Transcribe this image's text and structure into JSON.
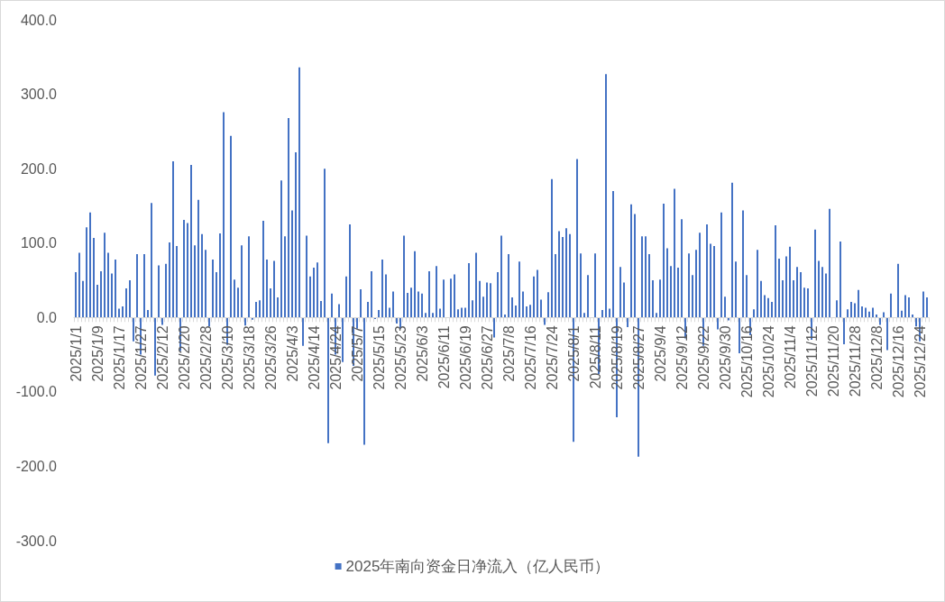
{
  "chart_data": {
    "type": "bar",
    "categories": [
      "2025/1/1",
      null,
      null,
      null,
      null,
      null,
      "2025/1/9",
      null,
      null,
      null,
      null,
      null,
      "2025/1/17",
      null,
      null,
      null,
      null,
      null,
      "2025/1/27",
      null,
      null,
      null,
      null,
      null,
      "2025/2/12",
      null,
      null,
      null,
      null,
      null,
      "2025/2/20",
      null,
      null,
      null,
      null,
      null,
      "2025/2/28",
      null,
      null,
      null,
      null,
      null,
      "2025/3/10",
      null,
      null,
      null,
      null,
      null,
      "2025/3/18",
      null,
      null,
      null,
      null,
      null,
      "2025/3/26",
      null,
      null,
      null,
      null,
      null,
      "2025/4/3",
      null,
      null,
      null,
      null,
      null,
      "2025/4/14",
      null,
      null,
      null,
      null,
      null,
      "2025/4/24",
      null,
      null,
      null,
      null,
      null,
      "2025/5/7",
      null,
      null,
      null,
      null,
      null,
      "2025/5/15",
      null,
      null,
      null,
      null,
      null,
      "2025/5/23",
      null,
      null,
      null,
      null,
      null,
      "2025/6/3",
      null,
      null,
      null,
      null,
      null,
      "2025/6/11",
      null,
      null,
      null,
      null,
      null,
      "2025/6/19",
      null,
      null,
      null,
      null,
      null,
      "2025/6/27",
      null,
      null,
      null,
      null,
      null,
      "2025/7/8",
      null,
      null,
      null,
      null,
      null,
      "2025/7/16",
      null,
      null,
      null,
      null,
      null,
      "2025/7/24",
      null,
      null,
      null,
      null,
      null,
      "2025/8/1",
      null,
      null,
      null,
      null,
      null,
      "2025/8/11",
      null,
      null,
      null,
      null,
      null,
      "2025/8/19",
      null,
      null,
      null,
      null,
      null,
      "2025/8/27",
      null,
      null,
      null,
      null,
      null,
      "2025/9/4",
      null,
      null,
      null,
      null,
      null,
      "2025/9/12",
      null,
      null,
      null,
      null,
      null,
      "2025/9/22",
      null,
      null,
      null,
      null,
      null,
      "2025/9/30",
      null,
      null,
      null,
      null,
      null,
      "2025/10/16",
      null,
      null,
      null,
      null,
      null,
      "2025/10/24",
      null,
      null,
      null,
      null,
      null,
      "2025/11/4",
      null,
      null,
      null,
      null,
      null,
      "2025/11/12",
      null,
      null,
      null,
      null,
      null,
      "2025/11/20",
      null,
      null,
      null,
      null,
      null,
      "2025/11/28",
      null,
      null,
      null,
      null,
      null,
      "2025/12/8",
      null,
      null,
      null,
      null,
      null,
      "2025/12/16",
      null,
      null,
      null,
      null,
      null,
      "2025/12/24",
      null,
      null
    ],
    "series": [
      {
        "name": "2025年南向资金日净流入（亿人民币）",
        "color": "#4472c4",
        "values": [
          61,
          87,
          49,
          121,
          141,
          107,
          44,
          62,
          114,
          87,
          59,
          78,
          12,
          15,
          39,
          50,
          -32,
          85,
          -50,
          85,
          10,
          154,
          -78,
          70,
          -10,
          72,
          101,
          210,
          96,
          -45,
          131,
          127,
          205,
          97,
          158,
          112,
          91,
          -12,
          78,
          61,
          113,
          276,
          -37,
          244,
          51,
          40,
          97,
          -11,
          109,
          -3,
          21,
          23,
          130,
          78,
          39,
          76,
          27,
          184,
          109,
          268,
          144,
          222,
          336,
          -38,
          110,
          55,
          67,
          74,
          22,
          200,
          -169,
          32,
          -50,
          18,
          -60,
          55,
          125,
          -65,
          -15,
          38,
          -171,
          21,
          62,
          -2,
          10,
          78,
          58,
          13,
          35,
          -8,
          -15,
          110,
          33,
          40,
          89,
          35,
          32,
          6,
          62,
          6,
          69,
          12,
          51,
          null,
          52,
          58,
          11,
          13,
          13,
          73,
          23,
          87,
          49,
          28,
          47,
          46,
          -27,
          61,
          110,
          4,
          85,
          27,
          16,
          75,
          35,
          15,
          17,
          55,
          64,
          24,
          -10,
          34,
          186,
          85,
          116,
          108,
          120,
          112,
          -167,
          213,
          86,
          6,
          57,
          null,
          86,
          -76,
          10,
          327,
          12,
          170,
          -134,
          68,
          47,
          -13,
          152,
          139,
          -187,
          109,
          109,
          85,
          50,
          6,
          51,
          153,
          93,
          69,
          173,
          67,
          132,
          -28,
          86,
          57,
          91,
          114,
          -38,
          125,
          99,
          96,
          -16,
          141,
          28,
          -4,
          181,
          75,
          -48,
          144,
          57,
          -24,
          11,
          91,
          49,
          30,
          26,
          21,
          124,
          79,
          50,
          82,
          95,
          50,
          68,
          61,
          40,
          39,
          -30,
          118,
          76,
          68,
          59,
          146,
          null,
          23,
          102,
          -36,
          11,
          21,
          19,
          37,
          15,
          13,
          8,
          13,
          4,
          -10,
          7,
          -44,
          32,
          null,
          72,
          9,
          30,
          27,
          4,
          -12,
          -32,
          35,
          27
        ]
      }
    ],
    "ylim": [
      -300,
      400
    ],
    "yticks": [
      {
        "value": -300,
        "label": "-300.0"
      },
      {
        "value": -200,
        "label": "-200.0"
      },
      {
        "value": -100,
        "label": "-100.0"
      },
      {
        "value": 0,
        "label": "0.0"
      },
      {
        "value": 100,
        "label": "100.0"
      },
      {
        "value": 200,
        "label": "200.0"
      },
      {
        "value": 300,
        "label": "300.0"
      },
      {
        "value": 400,
        "label": "400.0"
      }
    ],
    "legend": "bottom"
  }
}
